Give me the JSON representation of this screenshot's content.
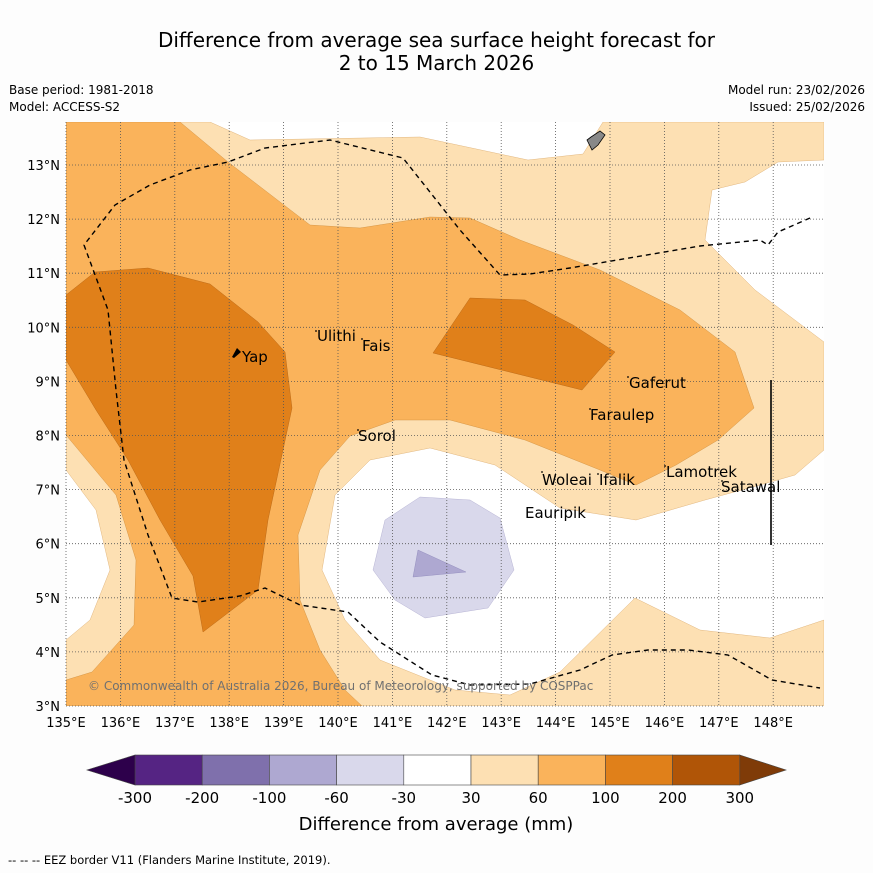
{
  "title": {
    "line1": "Difference from average sea surface height forecast for",
    "line2": "2 to 15 March 2026"
  },
  "meta": {
    "base_period": "Base period: 1981-2018",
    "model": "Model: ACCESS-S2",
    "model_run": "Model run: 23/02/2026",
    "issued": "Issued: 25/02/2026"
  },
  "map": {
    "lat_ticks": [
      "3°N",
      "4°N",
      "5°N",
      "6°N",
      "7°N",
      "8°N",
      "9°N",
      "10°N",
      "11°N",
      "12°N",
      "13°N"
    ],
    "lon_ticks": [
      "135°E",
      "136°E",
      "137°E",
      "138°E",
      "139°E",
      "140°E",
      "141°E",
      "142°E",
      "143°E",
      "144°E",
      "145°E",
      "146°E",
      "147°E",
      "148°E"
    ],
    "places": [
      "Yap",
      "Ulithi",
      "Fais",
      "Sorol",
      "Gaferut",
      "Faraulep",
      "Woleai",
      "Ifalik",
      "Eauripik",
      "Lamotrek",
      "Satawal"
    ],
    "copyright": "© Commonwealth of Australia 2026, Bureau of Meteorology, supported by COSPPac"
  },
  "colorbar": {
    "ticks": [
      "-300",
      "-200",
      "-100",
      "-60",
      "-30",
      "30",
      "60",
      "100",
      "200",
      "300"
    ],
    "colors": [
      "#552483",
      "#7f70ac",
      "#aea8d1",
      "#d9d8eb",
      "#ffffff",
      "#fde0b3",
      "#fab35b",
      "#e0801a",
      "#b05507"
    ],
    "extend_low": "#2d004b",
    "extend_high": "#7f3b08",
    "label": "Difference from average (mm)"
  },
  "footnote": "--  --  -- EEZ border V11 (Flanders Marine Institute, 2019)."
}
